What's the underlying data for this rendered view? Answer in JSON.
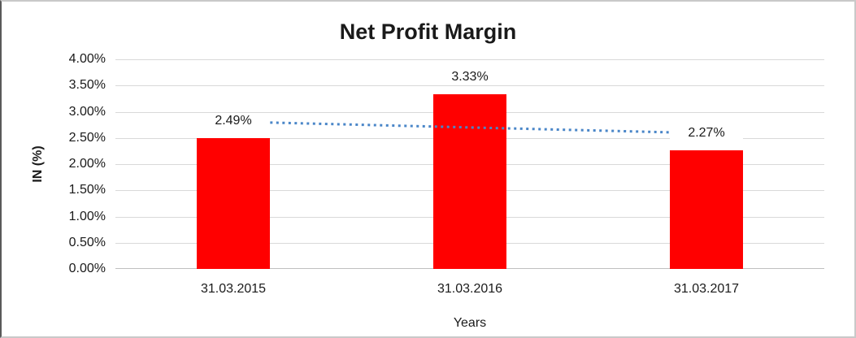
{
  "chart_data": {
    "type": "bar",
    "title": "Net Profit Margin",
    "categories": [
      "31.03.2015",
      "31.03.2016",
      "31.03.2017"
    ],
    "values": [
      2.49,
      3.33,
      2.27
    ],
    "data_labels": [
      "2.49%",
      "3.33%",
      "2.27%"
    ],
    "xlabel": "Years",
    "ylabel": "IN (%)",
    "ylim": [
      0,
      4
    ],
    "yticks": [
      {
        "v": 0,
        "label": "0.00%"
      },
      {
        "v": 0.5,
        "label": "0.50%"
      },
      {
        "v": 1,
        "label": "1.00%"
      },
      {
        "v": 1.5,
        "label": "1.50%"
      },
      {
        "v": 2,
        "label": "2.00%"
      },
      {
        "v": 2.5,
        "label": "2.50%"
      },
      {
        "v": 3,
        "label": "3.00%"
      },
      {
        "v": 3.5,
        "label": "3.50%"
      },
      {
        "v": 4,
        "label": "4.00%"
      }
    ],
    "grid": true,
    "legend": "none",
    "colors": {
      "bar": "#ff0000",
      "trendline": "#4a86c8",
      "gridline": "#d9d9d9",
      "text": "#1a1a1a"
    },
    "trendline": {
      "style": "dotted",
      "start_value": 2.81,
      "end_value": 2.59
    }
  }
}
